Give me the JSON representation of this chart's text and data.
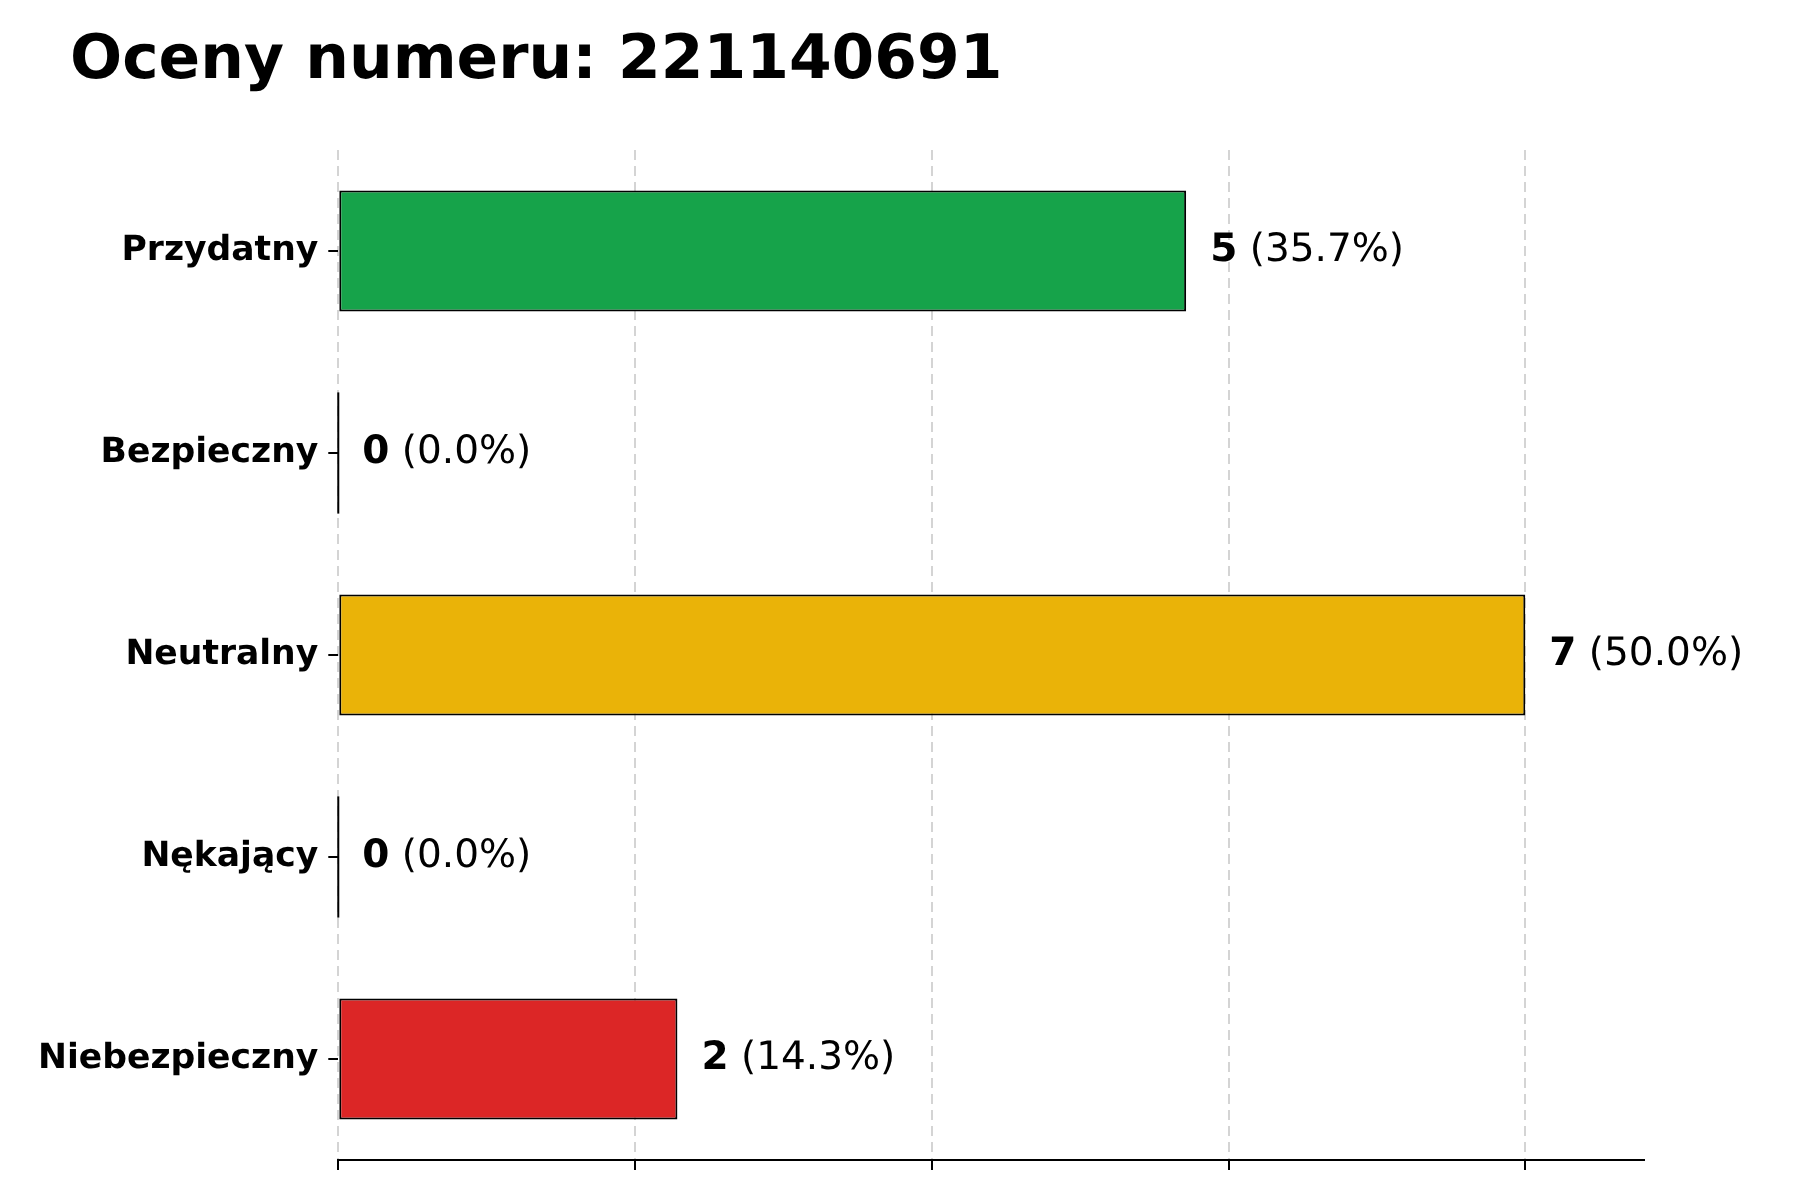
{
  "chart_data": {
    "type": "bar",
    "orientation": "horizontal",
    "title": "Oceny numeru: 221140691",
    "categories": [
      "Przydatny",
      "Bezpieczny",
      "Neutralny",
      "Nękający",
      "Niebezpieczny"
    ],
    "values": [
      5,
      0,
      7,
      0,
      2
    ],
    "colors": [
      "#16a34a",
      "#2563eb",
      "#eab308",
      "#ea580c",
      "#dc2626"
    ],
    "value_labels": [
      "5 (35.7%)",
      "0 (0.0%)",
      "7 (50.0%)",
      "0 (0.0%)",
      "2 (14.3%)"
    ],
    "xlim": [
      0,
      7.7
    ],
    "xticks": [
      {
        "value": 0,
        "label": null
      },
      {
        "value": 1.75,
        "label": null
      },
      {
        "value": 3.5,
        "label": null
      },
      {
        "value": 5.25,
        "label": null
      },
      {
        "value": 7,
        "label": null
      }
    ],
    "grid": "x",
    "legend": false,
    "tick_labels": "y"
  }
}
